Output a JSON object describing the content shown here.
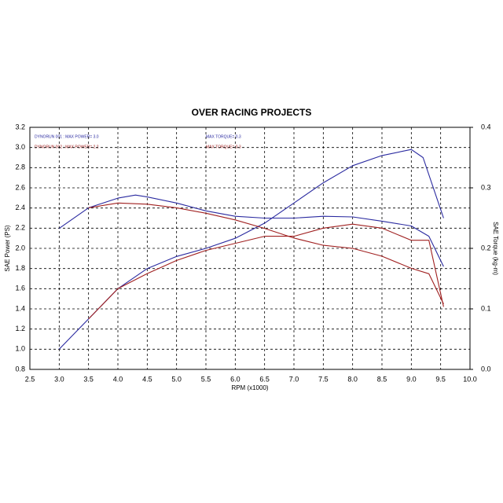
{
  "chart_data": {
    "type": "line",
    "title": "OVER RACING PROJECTS",
    "xlabel": "RPM  (x1000)",
    "ylabel": "SAE Power (PS)",
    "y2label": "SAE Torque (kg-m)",
    "legend": [
      "DYNORUN 001 : MAX POWER= 3.0",
      "MAX TORQUE= 0.3",
      "DYNORUN 002 : MAX POWER= 2.2",
      "MAX TORQUE= 0.3"
    ],
    "xlim": [
      2.5,
      10.0
    ],
    "xticks": [
      2.5,
      {
        "value": 3,
        "label": "3.0"
      },
      3.5,
      {
        "value": 4,
        "label": "4.0"
      },
      4.5,
      {
        "value": 5,
        "label": "5.0"
      },
      5.5,
      {
        "value": 6,
        "label": "6.0"
      },
      6.5,
      {
        "value": 7,
        "label": "7.0"
      },
      7.5,
      {
        "value": 8,
        "label": "8.0"
      },
      8.5,
      {
        "value": 9,
        "label": "9.0"
      },
      9.5,
      {
        "value": 10,
        "label": "10.0"
      }
    ],
    "ylim": [
      0.8,
      3.2
    ],
    "yticks": [
      0.8,
      {
        "value": 1,
        "label": "1.0"
      },
      1.2,
      1.4,
      1.6,
      1.8,
      {
        "value": 2,
        "label": "2.0"
      },
      2.2,
      2.4,
      2.6,
      2.8,
      {
        "value": 3,
        "label": "3.0"
      },
      3.2
    ],
    "y2lim": [
      0.0,
      0.4
    ],
    "y2ticks": [
      {
        "value": 0,
        "label": "0.0"
      },
      0.1,
      0.2,
      0.3,
      0.4
    ],
    "grid": true,
    "series": [
      {
        "name": "Power 001",
        "color": "#2a2aa0",
        "x": [
          3.0,
          3.5,
          4.0,
          4.5,
          5.0,
          5.5,
          6.0,
          6.5,
          7.0,
          7.5,
          8.0,
          8.5,
          9.0,
          9.2,
          9.55
        ],
        "values": [
          1.0,
          1.3,
          1.6,
          1.8,
          1.92,
          2.0,
          2.1,
          2.25,
          2.45,
          2.65,
          2.82,
          2.92,
          2.98,
          2.9,
          2.3
        ]
      },
      {
        "name": "Torque 001",
        "color": "#2a2aa0",
        "axis": "y2",
        "x": [
          3.0,
          3.5,
          4.0,
          4.3,
          4.5,
          5.0,
          5.5,
          6.0,
          6.5,
          7.0,
          7.5,
          8.0,
          8.5,
          9.0,
          9.3,
          9.55
        ],
        "values": [
          0.233,
          0.267,
          0.283,
          0.288,
          0.285,
          0.275,
          0.262,
          0.253,
          0.25,
          0.25,
          0.253,
          0.252,
          0.245,
          0.237,
          0.22,
          0.17
        ]
      },
      {
        "name": "Power 002",
        "color": "#a02020",
        "x": [
          3.5,
          4.0,
          4.5,
          5.0,
          5.5,
          6.0,
          6.5,
          7.0,
          7.5,
          8.0,
          8.5,
          9.0,
          9.3,
          9.55
        ],
        "values": [
          1.3,
          1.6,
          1.75,
          1.88,
          1.98,
          2.05,
          2.12,
          2.12,
          2.2,
          2.24,
          2.2,
          2.08,
          2.08,
          1.42
        ]
      },
      {
        "name": "Torque 002",
        "color": "#a02020",
        "axis": "y2",
        "x": [
          3.5,
          4.0,
          4.5,
          5.0,
          5.5,
          6.0,
          6.5,
          7.0,
          7.5,
          8.0,
          8.5,
          9.0,
          9.3,
          9.55
        ],
        "values": [
          0.267,
          0.275,
          0.273,
          0.267,
          0.258,
          0.247,
          0.233,
          0.217,
          0.205,
          0.2,
          0.187,
          0.167,
          0.158,
          0.108
        ]
      }
    ]
  }
}
